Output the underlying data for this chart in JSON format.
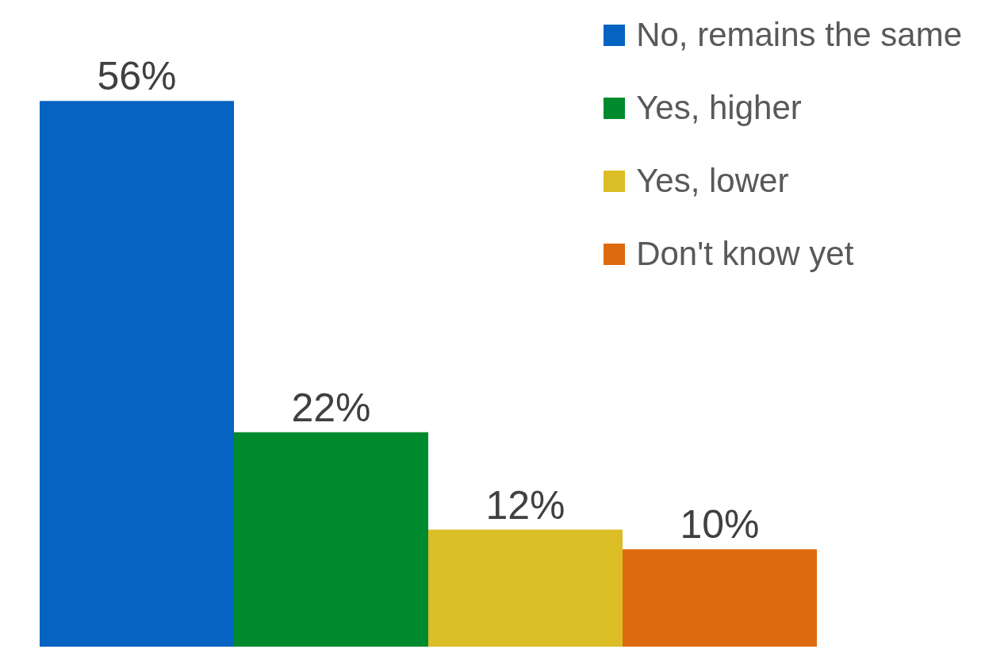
{
  "chart_data": {
    "type": "bar",
    "categories": [
      null
    ],
    "series": [
      {
        "name": "No, remains the same",
        "color": "#0563c1",
        "values": [
          56
        ],
        "value_labels": [
          "56%"
        ]
      },
      {
        "name": "Yes, higher",
        "color": "#008a2e",
        "values": [
          22
        ],
        "value_labels": [
          "22%"
        ]
      },
      {
        "name": "Yes, lower",
        "color": "#dbbd25",
        "values": [
          12
        ],
        "value_labels": [
          "12%"
        ]
      },
      {
        "name": "Don't know yet",
        "color": "#de6a10",
        "values": [
          10
        ],
        "value_labels": [
          "10%"
        ]
      }
    ],
    "grid": false,
    "legend": "top right"
  }
}
